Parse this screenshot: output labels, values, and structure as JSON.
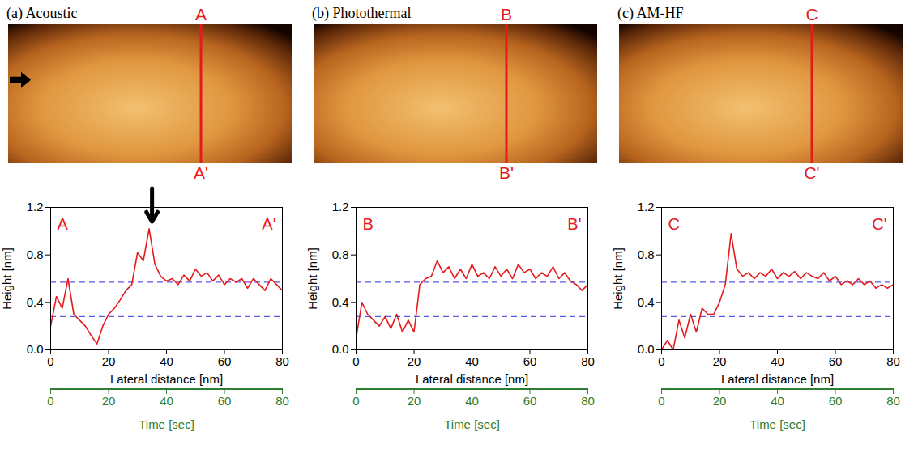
{
  "chart_data": [
    {
      "type": "line",
      "title": "(a) Acoustic",
      "image_labels": [
        "A",
        "A'"
      ],
      "color": "#e41a1c",
      "x_label": "Lateral distance [nm]",
      "y_label": "Height [nm]",
      "xlim": [
        0,
        80
      ],
      "xticks": [
        0,
        20,
        40,
        60,
        80
      ],
      "ylim": [
        0,
        1.2
      ],
      "yticks": [
        0,
        0.4,
        0.8,
        1.2
      ],
      "x2_label": "Time [sec]",
      "x2lim": [
        0,
        80
      ],
      "x2ticks": [
        0,
        20,
        40,
        60,
        80
      ],
      "x2_color": "#2e7d32",
      "reference_lines": {
        "values": [
          0.28,
          0.57
        ],
        "color": "#5b5be8",
        "line_style": "dashed"
      },
      "arrow": {
        "x": 35,
        "y_from": 1.36,
        "y_to": 1.08
      },
      "x": [
        0,
        2,
        4,
        6,
        8,
        10,
        12,
        14,
        16,
        18,
        20,
        22,
        24,
        26,
        28,
        30,
        32,
        34,
        36,
        38,
        40,
        42,
        44,
        46,
        48,
        50,
        52,
        54,
        56,
        58,
        60,
        62,
        64,
        66,
        68,
        70,
        72,
        74,
        76,
        78,
        80
      ],
      "values": [
        0.2,
        0.45,
        0.35,
        0.6,
        0.3,
        0.25,
        0.2,
        0.12,
        0.05,
        0.2,
        0.3,
        0.35,
        0.42,
        0.5,
        0.55,
        0.82,
        0.75,
        1.02,
        0.72,
        0.62,
        0.58,
        0.6,
        0.55,
        0.63,
        0.58,
        0.68,
        0.62,
        0.65,
        0.58,
        0.63,
        0.55,
        0.6,
        0.57,
        0.6,
        0.52,
        0.6,
        0.55,
        0.5,
        0.6,
        0.55,
        0.5
      ]
    },
    {
      "type": "line",
      "title": "(b) Photothermal",
      "image_labels": [
        "B",
        "B'"
      ],
      "color": "#e41a1c",
      "x_label": "Lateral distance [nm]",
      "y_label": "Height [nm]",
      "xlim": [
        0,
        80
      ],
      "xticks": [
        0,
        20,
        40,
        60,
        80
      ],
      "ylim": [
        0,
        1.2
      ],
      "yticks": [
        0,
        0.4,
        0.8,
        1.2
      ],
      "x2_label": "Time [sec]",
      "x2lim": [
        0,
        80
      ],
      "x2ticks": [
        0,
        20,
        40,
        60,
        80
      ],
      "x2_color": "#2e7d32",
      "reference_lines": {
        "values": [
          0.28,
          0.57
        ],
        "color": "#5b5be8",
        "line_style": "dashed"
      },
      "x": [
        0,
        2,
        4,
        6,
        8,
        10,
        12,
        14,
        16,
        18,
        20,
        22,
        24,
        26,
        28,
        30,
        32,
        34,
        36,
        38,
        40,
        42,
        44,
        46,
        48,
        50,
        52,
        54,
        56,
        58,
        60,
        62,
        64,
        66,
        68,
        70,
        72,
        74,
        76,
        78,
        80
      ],
      "values": [
        0.1,
        0.4,
        0.3,
        0.25,
        0.2,
        0.28,
        0.18,
        0.3,
        0.15,
        0.25,
        0.15,
        0.55,
        0.6,
        0.62,
        0.75,
        0.65,
        0.7,
        0.6,
        0.68,
        0.6,
        0.72,
        0.62,
        0.65,
        0.6,
        0.7,
        0.62,
        0.68,
        0.6,
        0.72,
        0.65,
        0.68,
        0.6,
        0.65,
        0.62,
        0.7,
        0.6,
        0.65,
        0.58,
        0.55,
        0.5,
        0.55
      ]
    },
    {
      "type": "line",
      "title": "(c) AM-HF",
      "image_labels": [
        "C",
        "C'"
      ],
      "color": "#e41a1c",
      "x_label": "Lateral distance [nm]",
      "y_label": "Height [nm]",
      "xlim": [
        0,
        80
      ],
      "xticks": [
        0,
        20,
        40,
        60,
        80
      ],
      "ylim": [
        0,
        1.2
      ],
      "yticks": [
        0,
        0.4,
        0.8,
        1.2
      ],
      "x2_label": "Time [sec]",
      "x2lim": [
        0,
        80
      ],
      "x2ticks": [
        0,
        20,
        40,
        60,
        80
      ],
      "x2_color": "#2e7d32",
      "reference_lines": {
        "values": [
          0.28,
          0.57
        ],
        "color": "#5b5be8",
        "line_style": "dashed"
      },
      "x": [
        0,
        2,
        4,
        6,
        8,
        10,
        12,
        14,
        16,
        18,
        20,
        22,
        24,
        26,
        28,
        30,
        32,
        34,
        36,
        38,
        40,
        42,
        44,
        46,
        48,
        50,
        52,
        54,
        56,
        58,
        60,
        62,
        64,
        66,
        68,
        70,
        72,
        74,
        76,
        78,
        80
      ],
      "values": [
        0,
        0.08,
        0,
        0.25,
        0.1,
        0.3,
        0.15,
        0.35,
        0.3,
        0.3,
        0.4,
        0.55,
        0.98,
        0.68,
        0.62,
        0.65,
        0.6,
        0.65,
        0.62,
        0.68,
        0.6,
        0.65,
        0.62,
        0.66,
        0.6,
        0.65,
        0.62,
        0.6,
        0.65,
        0.58,
        0.62,
        0.55,
        0.58,
        0.55,
        0.6,
        0.55,
        0.58,
        0.52,
        0.55,
        0.52,
        0.55
      ]
    }
  ]
}
